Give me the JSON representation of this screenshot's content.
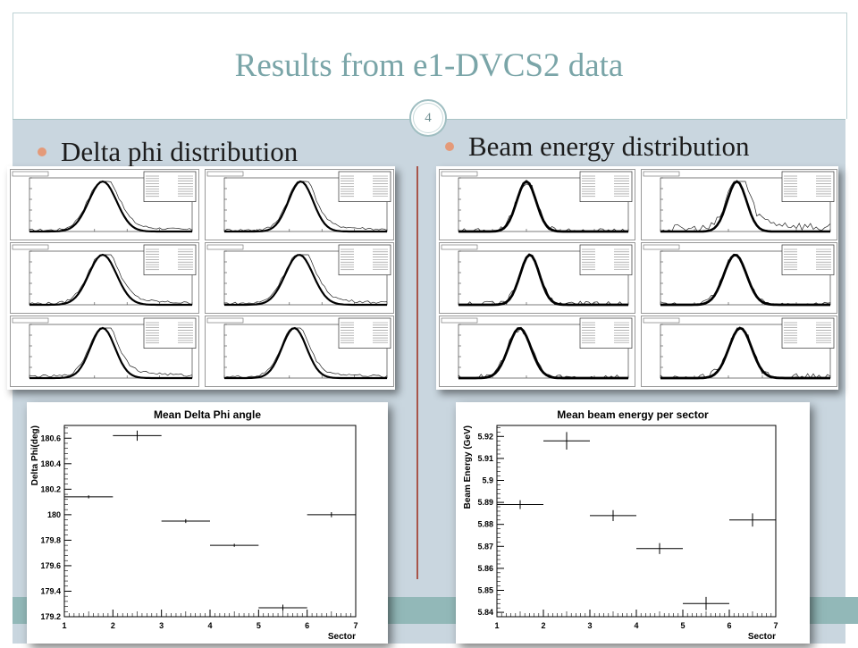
{
  "slide": {
    "title": "Results from e1-DVCS2 data",
    "page_number": "4",
    "bullet_left": "Delta phi distribution",
    "bullet_right": "Beam energy distribution"
  },
  "thumbnails": {
    "left_title": "",
    "right_title": "Beam_Energy_Sector1_1Constraint"
  },
  "chart_data": [
    {
      "type": "scatter",
      "title": "Mean Delta Phi angle",
      "xlabel": "Sector",
      "ylabel": "Delta Phi(deg)",
      "xlim": [
        1,
        7
      ],
      "ylim": [
        179.2,
        180.7
      ],
      "xticks": [
        1,
        2,
        3,
        4,
        5,
        6,
        7
      ],
      "yticks": [
        179.2,
        179.4,
        179.6,
        179.8,
        180,
        180.2,
        180.4,
        180.6
      ],
      "ytick_labels": [
        "179.2",
        "179.4",
        "179.6",
        "179.8",
        "180",
        "180.2",
        "180.4",
        "180.6"
      ],
      "points": [
        {
          "x": 1.5,
          "y": 180.14,
          "xerr": 0.5,
          "yerr": 0.012
        },
        {
          "x": 2.5,
          "y": 180.62,
          "xerr": 0.5,
          "yerr": 0.04
        },
        {
          "x": 3.5,
          "y": 179.95,
          "xerr": 0.5,
          "yerr": 0.015
        },
        {
          "x": 4.5,
          "y": 179.76,
          "xerr": 0.5,
          "yerr": 0.012
        },
        {
          "x": 5.5,
          "y": 179.27,
          "xerr": 0.5,
          "yerr": 0.025
        },
        {
          "x": 6.5,
          "y": 180.0,
          "xerr": 0.5,
          "yerr": 0.02
        }
      ],
      "grid": false
    },
    {
      "type": "scatter",
      "title": "Mean beam energy per sector",
      "xlabel": "Sector",
      "ylabel": "Beam Energy (GeV)",
      "xlim": [
        1,
        7
      ],
      "ylim": [
        5.838,
        5.925
      ],
      "xticks": [
        1,
        2,
        3,
        4,
        5,
        6,
        7
      ],
      "yticks": [
        5.84,
        5.85,
        5.86,
        5.87,
        5.88,
        5.89,
        5.9,
        5.91,
        5.92
      ],
      "ytick_labels": [
        "5.84",
        "5.85",
        "5.86",
        "5.87",
        "5.88",
        "5.89",
        "5.9",
        "5.91",
        "5.92"
      ],
      "points": [
        {
          "x": 1.5,
          "y": 5.889,
          "xerr": 0.5,
          "yerr": 0.002
        },
        {
          "x": 2.5,
          "y": 5.918,
          "xerr": 0.5,
          "yerr": 0.004
        },
        {
          "x": 3.5,
          "y": 5.884,
          "xerr": 0.5,
          "yerr": 0.0025
        },
        {
          "x": 4.5,
          "y": 5.869,
          "xerr": 0.5,
          "yerr": 0.0025
        },
        {
          "x": 5.5,
          "y": 5.844,
          "xerr": 0.5,
          "yerr": 0.003
        },
        {
          "x": 6.5,
          "y": 5.882,
          "xerr": 0.5,
          "yerr": 0.003
        }
      ],
      "grid": false
    }
  ],
  "colors": {
    "title": "#7aa5a8",
    "content_bg": "#c9d6df",
    "footer_band": "#92b8b8",
    "bullet_dot": "#e49a79",
    "divider": "#a8554a"
  }
}
